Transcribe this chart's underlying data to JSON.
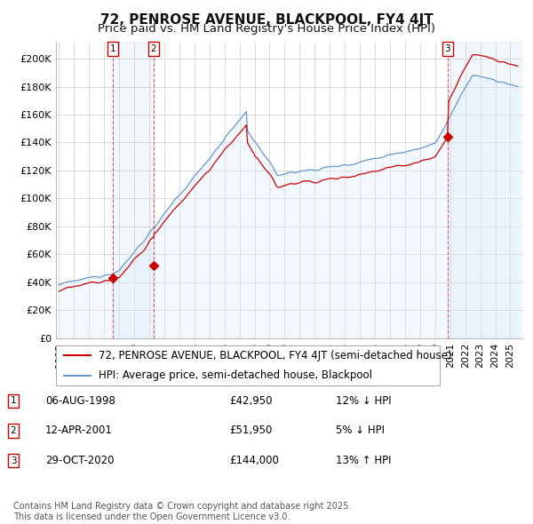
{
  "title": "72, PENROSE AVENUE, BLACKPOOL, FY4 4JT",
  "subtitle": "Price paid vs. HM Land Registry's House Price Index (HPI)",
  "legend_property": "72, PENROSE AVENUE, BLACKPOOL, FY4 4JT (semi-detached house)",
  "legend_hpi": "HPI: Average price, semi-detached house, Blackpool",
  "yticks": [
    0,
    20000,
    40000,
    60000,
    80000,
    100000,
    120000,
    140000,
    160000,
    180000,
    200000
  ],
  "ytick_labels": [
    "£0",
    "£20K",
    "£40K",
    "£60K",
    "£80K",
    "£100K",
    "£120K",
    "£140K",
    "£160K",
    "£180K",
    "£200K"
  ],
  "ylim": [
    0,
    212000
  ],
  "xlim_start": 1994.8,
  "xlim_end": 2025.8,
  "property_color": "#cc0000",
  "hpi_color": "#6699cc",
  "hpi_fill_color": "#ddeeff",
  "sale_marker_color": "#cc0000",
  "vline_color": "#cc0000",
  "vline_alpha": 0.6,
  "span_color": "#cce0f0",
  "span_alpha": 0.25,
  "background_color": "#ffffff",
  "grid_color": "#cccccc",
  "sales": [
    {
      "label": "1",
      "date_x": 1998.59,
      "price": 42950
    },
    {
      "label": "2",
      "date_x": 2001.28,
      "price": 51950
    },
    {
      "label": "3",
      "date_x": 2020.83,
      "price": 144000
    }
  ],
  "annotations": [
    {
      "num": "1",
      "date": "06-AUG-1998",
      "price": "£42,950",
      "change": "12% ↓ HPI"
    },
    {
      "num": "2",
      "date": "12-APR-2001",
      "price": "£51,950",
      "change": "5% ↓ HPI"
    },
    {
      "num": "3",
      "date": "29-OCT-2020",
      "price": "£144,000",
      "change": "13% ↑ HPI"
    }
  ],
  "footer": "Contains HM Land Registry data © Crown copyright and database right 2025.\nThis data is licensed under the Open Government Licence v3.0.",
  "title_fontsize": 11,
  "subtitle_fontsize": 9.5,
  "tick_fontsize": 8,
  "legend_fontsize": 8.5,
  "annotation_fontsize": 8.5,
  "footer_fontsize": 7
}
